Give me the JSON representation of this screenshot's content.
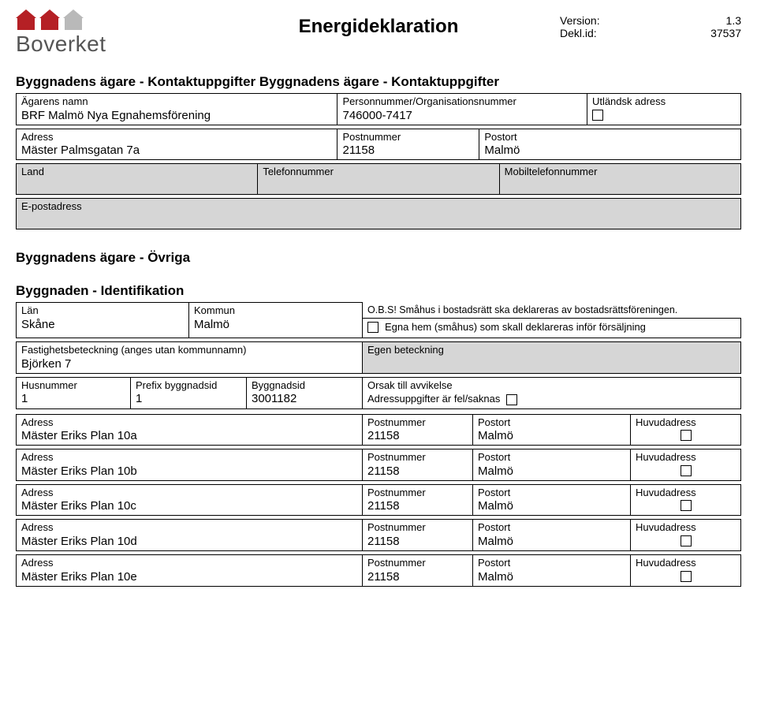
{
  "header": {
    "logo_text": "Boverket",
    "title": "Energideklaration",
    "version_label": "Version:",
    "version_value": "1.3",
    "deklId_label": "Dekl.id:",
    "deklId_value": "37537"
  },
  "section_owner_title": "Byggnadens ägare - Kontaktuppgifter Byggnadens ägare - Kontaktuppgifter",
  "owner": {
    "agarens_namn_label": "Ägarens namn",
    "agarens_namn": "BRF Malmö Nya Egnahemsförening",
    "pnr_label": "Personnummer/Organisationsnummer",
    "pnr": "746000-7417",
    "utlandsk_label": "Utländsk adress",
    "adress_label": "Adress",
    "adress": "Mäster Palmsgatan 7a",
    "postnummer_label": "Postnummer",
    "postnummer": "21158",
    "postort_label": "Postort",
    "postort": "Malmö",
    "land_label": "Land",
    "telefon_label": "Telefonnummer",
    "mobil_label": "Mobiltelefonnummer",
    "epost_label": "E-postadress"
  },
  "section_ovriga_title": "Byggnadens ägare - Övriga",
  "section_ident_title": "Byggnaden - Identifikation",
  "ident": {
    "lan_label": "Län",
    "lan": "Skåne",
    "kommun_label": "Kommun",
    "kommun": "Malmö",
    "obs_text": "O.B.S! Småhus i bostadsrätt ska deklareras av bostadsrättsföreningen.",
    "egna_hem_text": "Egna hem (småhus) som skall deklareras inför försäljning",
    "fastighet_label": "Fastighetsbeteckning (anges utan kommunnamn)",
    "fastighet": "Björken 7",
    "egen_bet_label": "Egen beteckning",
    "husnr_label": "Husnummer",
    "husnr": "1",
    "prefix_label": "Prefix byggnadsid",
    "prefix": "1",
    "byggid_label": "Byggnadsid",
    "byggid": "3001182",
    "orsak_label": "Orsak till avvikelse",
    "orsak_text": "Adressuppgifter är fel/saknas"
  },
  "addr_header": {
    "adress": "Adress",
    "postnummer": "Postnummer",
    "postort": "Postort",
    "huvudadress": "Huvudadress"
  },
  "addresses": [
    {
      "adress": "Mäster Eriks Plan 10a",
      "postnummer": "21158",
      "postort": "Malmö"
    },
    {
      "adress": "Mäster Eriks Plan 10b",
      "postnummer": "21158",
      "postort": "Malmö"
    },
    {
      "adress": "Mäster Eriks Plan 10c",
      "postnummer": "21158",
      "postort": "Malmö"
    },
    {
      "adress": "Mäster Eriks Plan 10d",
      "postnummer": "21158",
      "postort": "Malmö"
    },
    {
      "adress": "Mäster Eriks Plan 10e",
      "postnummer": "21158",
      "postort": "Malmö"
    }
  ],
  "colors": {
    "field_border": "#000000",
    "disabled_bg": "#d6d6d6",
    "logo_red": "#b52025",
    "logo_gray": "#b9b9b9",
    "logo_text": "#555555"
  }
}
